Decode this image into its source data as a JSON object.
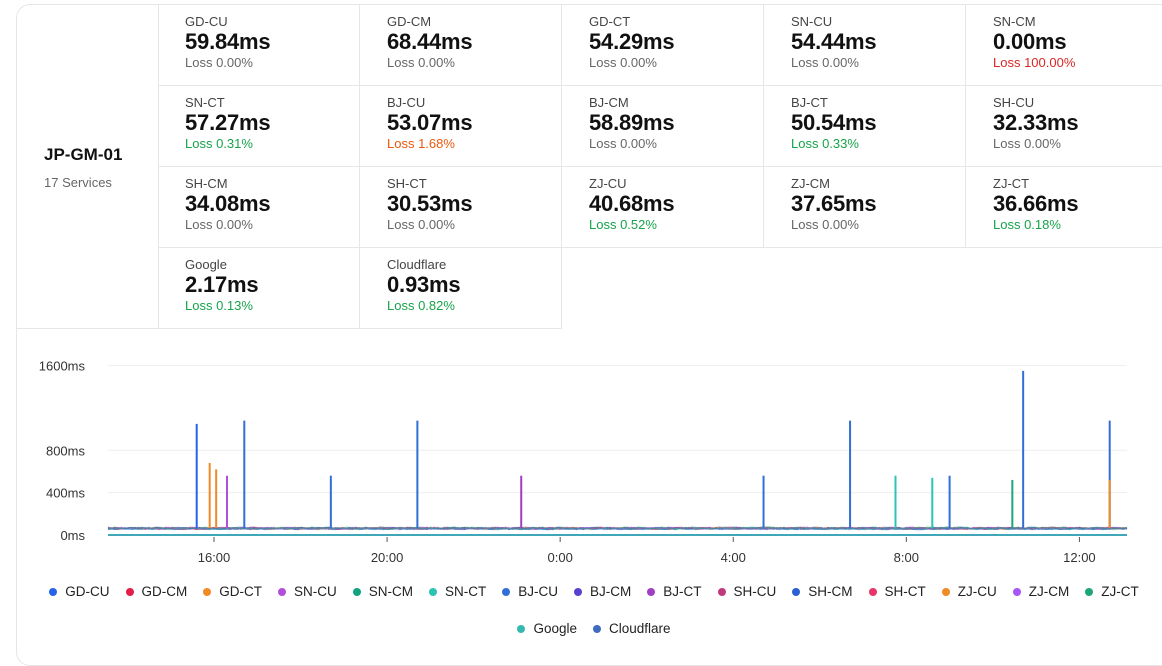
{
  "server": {
    "name": "JP-GM-01",
    "services_label": "17 Services"
  },
  "services": [
    {
      "name": "GD-CU",
      "latency": "59.84ms",
      "loss": "Loss 0.00%",
      "loss_level": "none"
    },
    {
      "name": "GD-CM",
      "latency": "68.44ms",
      "loss": "Loss 0.00%",
      "loss_level": "none"
    },
    {
      "name": "GD-CT",
      "latency": "54.29ms",
      "loss": "Loss 0.00%",
      "loss_level": "none"
    },
    {
      "name": "SN-CU",
      "latency": "54.44ms",
      "loss": "Loss 0.00%",
      "loss_level": "none"
    },
    {
      "name": "SN-CM",
      "latency": "0.00ms",
      "loss": "Loss 100.00%",
      "loss_level": "high"
    },
    {
      "name": "SN-CT",
      "latency": "57.27ms",
      "loss": "Loss 0.31%",
      "loss_level": "low"
    },
    {
      "name": "BJ-CU",
      "latency": "53.07ms",
      "loss": "Loss 1.68%",
      "loss_level": "mid"
    },
    {
      "name": "BJ-CM",
      "latency": "58.89ms",
      "loss": "Loss 0.00%",
      "loss_level": "none"
    },
    {
      "name": "BJ-CT",
      "latency": "50.54ms",
      "loss": "Loss 0.33%",
      "loss_level": "low"
    },
    {
      "name": "SH-CU",
      "latency": "32.33ms",
      "loss": "Loss 0.00%",
      "loss_level": "none"
    },
    {
      "name": "SH-CM",
      "latency": "34.08ms",
      "loss": "Loss 0.00%",
      "loss_level": "none"
    },
    {
      "name": "SH-CT",
      "latency": "30.53ms",
      "loss": "Loss 0.00%",
      "loss_level": "none"
    },
    {
      "name": "ZJ-CU",
      "latency": "40.68ms",
      "loss": "Loss 0.52%",
      "loss_level": "low"
    },
    {
      "name": "ZJ-CM",
      "latency": "37.65ms",
      "loss": "Loss 0.00%",
      "loss_level": "none"
    },
    {
      "name": "ZJ-CT",
      "latency": "36.66ms",
      "loss": "Loss 0.18%",
      "loss_level": "low"
    },
    {
      "name": "Google",
      "latency": "2.17ms",
      "loss": "Loss 0.13%",
      "loss_level": "low"
    },
    {
      "name": "Cloudflare",
      "latency": "0.93ms",
      "loss": "Loss 0.82%",
      "loss_level": "low"
    }
  ],
  "colors": {
    "loss_low": "#16a34a",
    "loss_mid": "#ea580c",
    "loss_high": "#dc2626",
    "loss_none": "#666666"
  },
  "chart_data": {
    "type": "line",
    "title": "",
    "xlabel": "",
    "ylabel": "",
    "ylim": [
      0,
      1700
    ],
    "yticks": [
      0,
      400,
      800,
      1600
    ],
    "ytick_labels": [
      "0ms",
      "400ms",
      "800ms",
      "1600ms"
    ],
    "xlim_hours": [
      13.55,
      37.1
    ],
    "xticks": [
      16,
      20,
      24,
      28,
      32,
      36
    ],
    "xtick_labels": [
      "16:00",
      "20:00",
      "0:00",
      "4:00",
      "8:00",
      "12:00"
    ],
    "grid": true,
    "baseline_ms": 65,
    "series": [
      {
        "name": "GD-CU",
        "color": "#2563eb",
        "spikes": [
          [
            15.6,
            1050
          ]
        ]
      },
      {
        "name": "GD-CM",
        "color": "#e11d48",
        "spikes": []
      },
      {
        "name": "GD-CT",
        "color": "#f08a24",
        "spikes": [
          [
            15.9,
            680
          ],
          [
            16.05,
            620
          ]
        ]
      },
      {
        "name": "SN-CU",
        "color": "#b14fd8",
        "spikes": [
          [
            16.3,
            560
          ]
        ]
      },
      {
        "name": "SN-CM",
        "color": "#10a37f",
        "spikes": []
      },
      {
        "name": "SN-CT",
        "color": "#2cc3b5",
        "spikes": [
          [
            31.75,
            560
          ],
          [
            32.6,
            540
          ]
        ]
      },
      {
        "name": "BJ-CU",
        "color": "#2f6fd6",
        "spikes": [
          [
            16.7,
            1080
          ],
          [
            18.7,
            560
          ],
          [
            20.7,
            1080
          ],
          [
            28.7,
            560
          ],
          [
            30.7,
            1080
          ],
          [
            33.0,
            560
          ],
          [
            34.7,
            1550
          ],
          [
            36.7,
            1080
          ]
        ]
      },
      {
        "name": "BJ-CM",
        "color": "#5b3fd1",
        "spikes": []
      },
      {
        "name": "BJ-CT",
        "color": "#a03ec4",
        "spikes": [
          [
            23.1,
            560
          ]
        ]
      },
      {
        "name": "SH-CU",
        "color": "#c0397a",
        "spikes": []
      },
      {
        "name": "SH-CM",
        "color": "#2a60d4",
        "spikes": []
      },
      {
        "name": "SH-CT",
        "color": "#e8336b",
        "spikes": []
      },
      {
        "name": "ZJ-CU",
        "color": "#f08a24",
        "spikes": [
          [
            36.7,
            520
          ]
        ]
      },
      {
        "name": "ZJ-CM",
        "color": "#a855f7",
        "spikes": []
      },
      {
        "name": "ZJ-CT",
        "color": "#1fa57a",
        "spikes": [
          [
            34.45,
            520
          ]
        ]
      },
      {
        "name": "Google",
        "color": "#36b9b0",
        "spikes": []
      },
      {
        "name": "Cloudflare",
        "color": "#3f6cc0",
        "spikes": []
      }
    ]
  }
}
